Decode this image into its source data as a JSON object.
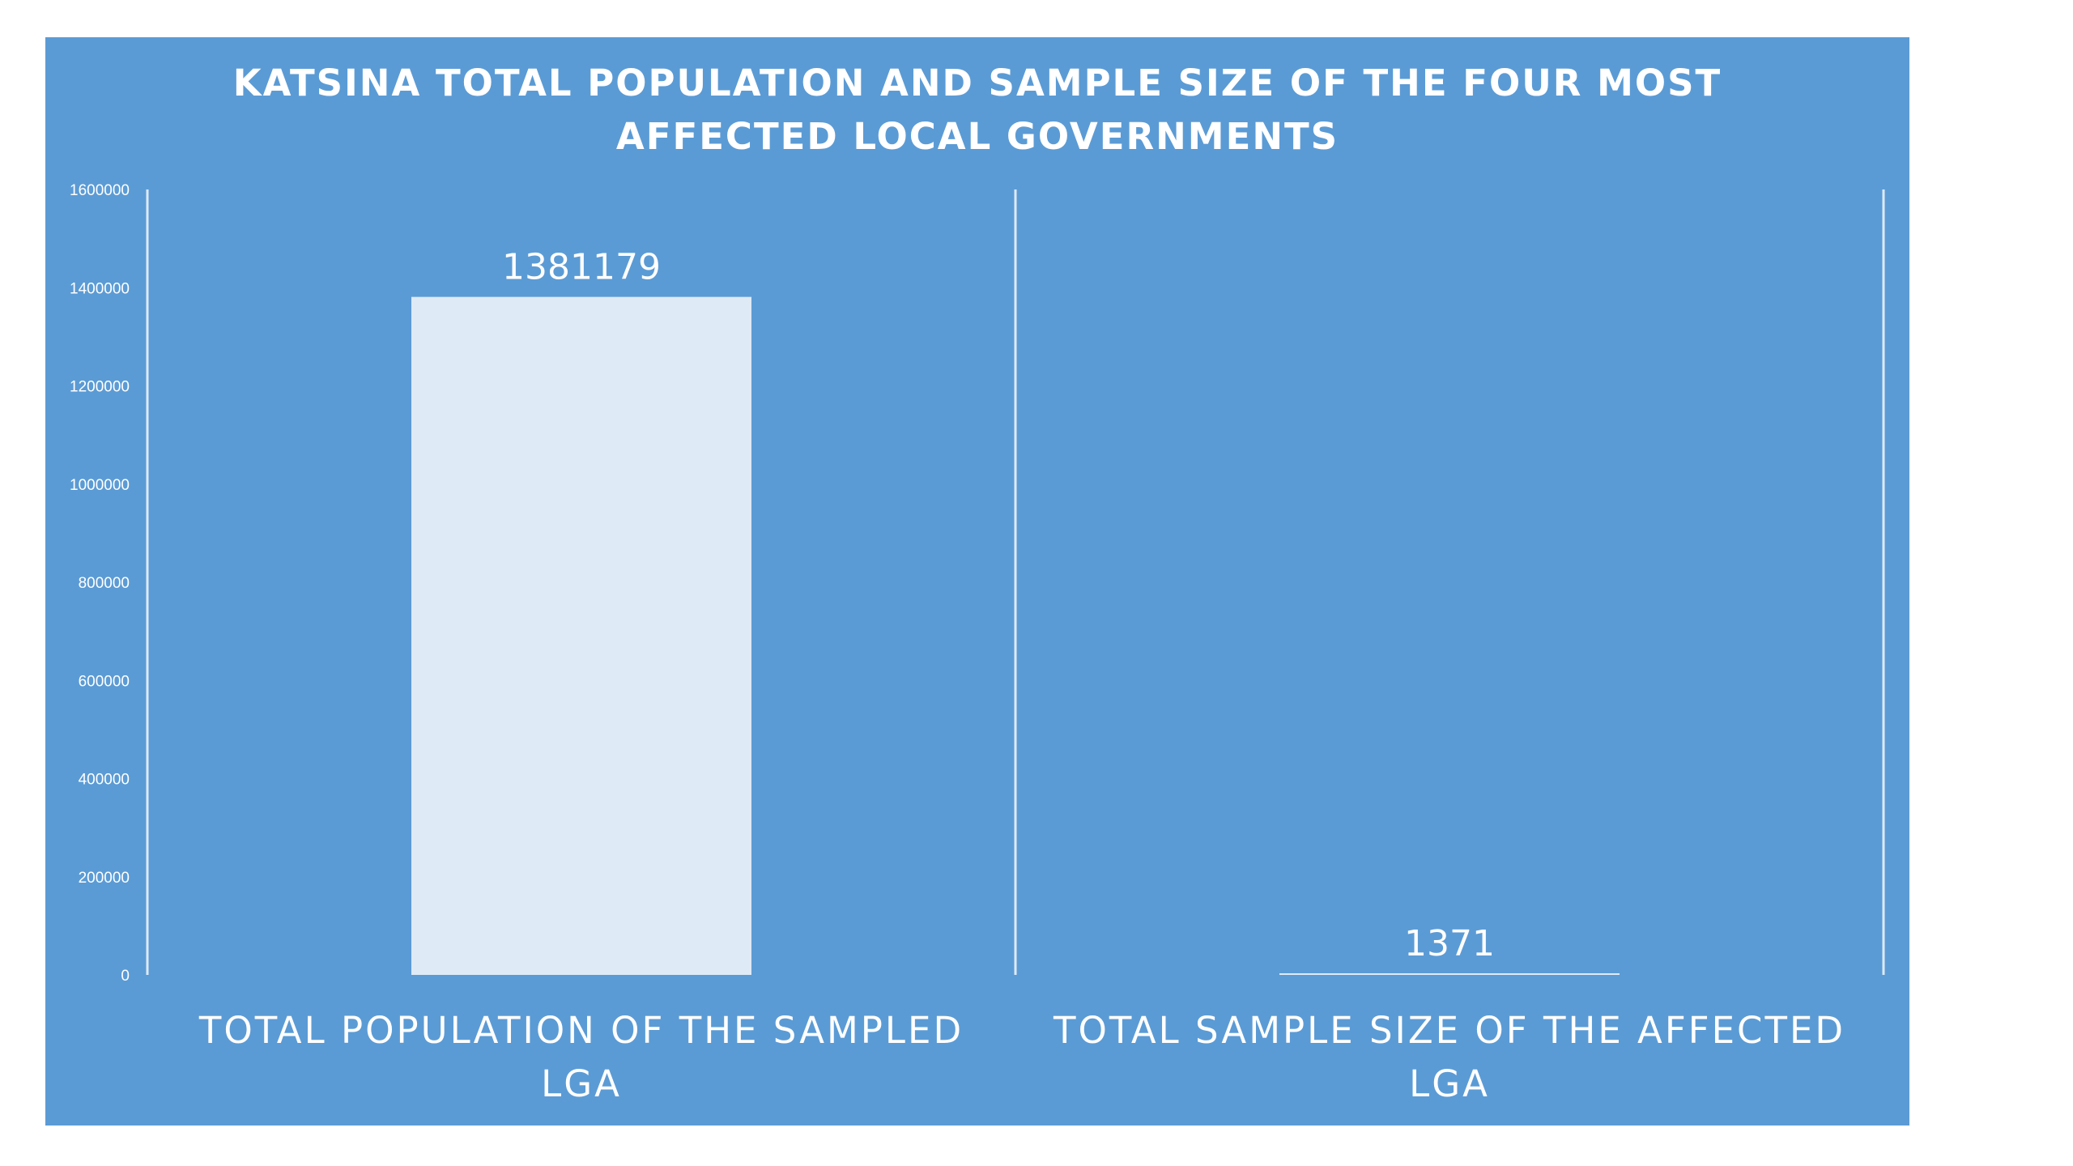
{
  "chart_data": {
    "type": "bar",
    "title": "KATSINA TOTAL POPULATION AND SAMPLE SIZE OF THE FOUR MOST AFFECTED LOCAL GOVERNMENTS",
    "title_lines": [
      "KATSINA TOTAL POPULATION AND SAMPLE SIZE OF THE FOUR MOST",
      "AFFECTED LOCAL GOVERNMENTS"
    ],
    "categories": [
      "TOTAL POPULATION OF THE SAMPLED LGA",
      "TOTAL SAMPLE SIZE OF THE AFFECTED LGA"
    ],
    "category_lines": [
      [
        "TOTAL POPULATION OF THE SAMPLED",
        "LGA"
      ],
      [
        "TOTAL SAMPLE SIZE OF THE AFFECTED",
        "LGA"
      ]
    ],
    "values": [
      1381179,
      1371
    ],
    "data_labels": [
      "1381179",
      "1371"
    ],
    "ylim": [
      0,
      1600000
    ],
    "yticks": [
      0,
      200000,
      400000,
      600000,
      800000,
      1000000,
      1200000,
      1400000,
      1600000
    ],
    "xlabel": "",
    "ylabel": "",
    "grid": false,
    "colors": {
      "background": "#5b9bd5",
      "bar": "#deeaf6",
      "text": "#ffffff",
      "divider": "#deeaf6"
    }
  }
}
